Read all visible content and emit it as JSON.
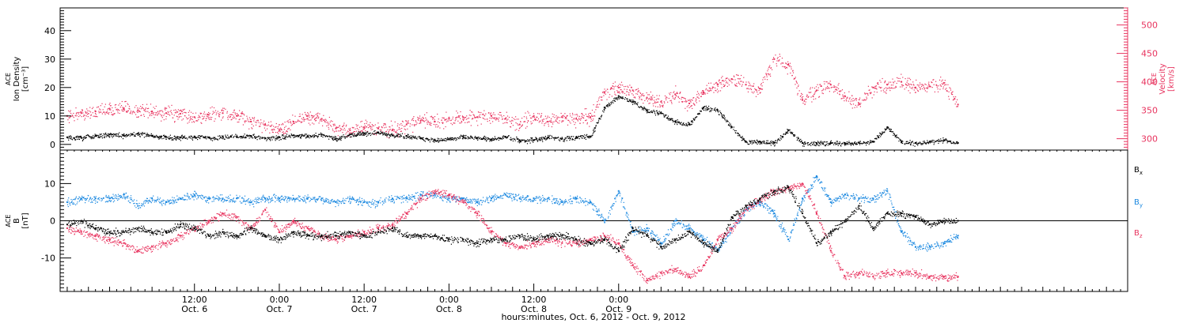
{
  "chart_data": [
    {
      "type": "scatter",
      "panel": "plasma",
      "ylabel": "ACE\nIon Density\n[cm⁻³]",
      "ylabel_right": "ACE\nVelocity\n[km/s]",
      "ylim": [
        -2,
        48
      ],
      "yticks": [
        0,
        10,
        20,
        30,
        40
      ],
      "ylim_right": [
        280,
        530
      ],
      "yticks_right": [
        300,
        350,
        400,
        450,
        500
      ],
      "x_unit": "hours since 2012-10-06 00:00",
      "series": [
        {
          "name": "Ion Density",
          "axis": "left",
          "color": "#000000",
          "x": [
            -6,
            -4,
            -2,
            0,
            2,
            4,
            6,
            8,
            10,
            12,
            14,
            16,
            18,
            20,
            22,
            24,
            26,
            28,
            30,
            32,
            34,
            36,
            38,
            40,
            42,
            44,
            46,
            48,
            50,
            52,
            54,
            56,
            58,
            60,
            62,
            64,
            66,
            68,
            70,
            72,
            74,
            76,
            78,
            80,
            82,
            84,
            86,
            88,
            90,
            92,
            94,
            96,
            98,
            100,
            102,
            104,
            106,
            108,
            110,
            112,
            114,
            116,
            118,
            120
          ],
          "values": [
            2.5,
            2.3,
            3.0,
            3.5,
            3.2,
            3.8,
            3.0,
            2.6,
            2.5,
            2.8,
            2.4,
            2.6,
            2.7,
            3.0,
            2.2,
            2.6,
            3.2,
            2.8,
            3.5,
            2.0,
            3.5,
            3.8,
            4.2,
            3.2,
            3.0,
            2.2,
            1.5,
            2.0,
            2.8,
            2.3,
            1.8,
            2.7,
            1.5,
            1.5,
            2.5,
            2.0,
            2.5,
            2.8,
            13.0,
            17.0,
            15.0,
            12.0,
            11.0,
            8.0,
            7.0,
            13.0,
            12.0,
            6.0,
            1.0,
            1.0,
            0.5,
            5.0,
            0.5,
            0.5,
            0.5,
            0.5,
            0.5,
            1.0,
            6.0,
            1.0,
            0.5,
            1.0,
            1.5,
            0.5
          ]
        },
        {
          "name": "Velocity",
          "axis": "right",
          "color": "#e8345f",
          "x": [
            -6,
            -4,
            -2,
            0,
            2,
            4,
            6,
            8,
            10,
            12,
            14,
            16,
            18,
            20,
            22,
            24,
            26,
            28,
            30,
            32,
            34,
            36,
            38,
            40,
            42,
            44,
            46,
            48,
            50,
            52,
            54,
            56,
            58,
            60,
            62,
            64,
            66,
            68,
            70,
            72,
            74,
            76,
            78,
            80,
            82,
            84,
            86,
            88,
            90,
            92,
            94,
            96,
            98,
            100,
            102,
            104,
            106,
            108,
            110,
            112,
            114,
            116,
            118,
            120
          ],
          "values": [
            340,
            345,
            348,
            353,
            352,
            350,
            348,
            345,
            344,
            338,
            342,
            345,
            340,
            330,
            325,
            315,
            330,
            340,
            335,
            318,
            315,
            320,
            318,
            315,
            325,
            332,
            330,
            335,
            338,
            338,
            340,
            335,
            325,
            340,
            330,
            338,
            335,
            338,
            382,
            390,
            385,
            372,
            365,
            378,
            362,
            382,
            395,
            405,
            395,
            388,
            440,
            430,
            368,
            385,
            395,
            375,
            362,
            390,
            395,
            400,
            390,
            392,
            398,
            360
          ]
        }
      ]
    },
    {
      "type": "scatter",
      "panel": "magnetic-field",
      "ylabel": "ACE\nB\n[nT]",
      "ylim": [
        -19,
        19
      ],
      "yticks": [
        -10,
        0,
        10
      ],
      "zero_line": true,
      "x_unit": "hours since 2012-10-06 00:00",
      "series": [
        {
          "name": "B_x",
          "color": "#000000",
          "x": [
            -6,
            -4,
            -2,
            0,
            2,
            4,
            6,
            8,
            10,
            12,
            14,
            16,
            18,
            20,
            22,
            24,
            26,
            28,
            30,
            32,
            34,
            36,
            38,
            40,
            42,
            44,
            46,
            48,
            50,
            52,
            54,
            56,
            58,
            60,
            62,
            64,
            66,
            68,
            70,
            72,
            74,
            76,
            78,
            80,
            82,
            84,
            86,
            88,
            90,
            92,
            94,
            96,
            98,
            100,
            102,
            104,
            106,
            108,
            110,
            112,
            114,
            116,
            118,
            120
          ],
          "values": [
            -1,
            0,
            -2,
            -3,
            -3,
            -2,
            -3,
            -3,
            -1,
            -2,
            -4,
            -3,
            -4,
            -2,
            -4,
            -5,
            -3,
            -4,
            -4,
            -4,
            -3,
            -4,
            -3,
            -2,
            -4,
            -4,
            -4,
            -5,
            -5,
            -6,
            -5,
            -5,
            -4,
            -5,
            -4,
            -4,
            -5,
            -6,
            -5,
            -8,
            -2,
            -4,
            -7,
            -5,
            -3,
            -6,
            -8,
            1,
            4,
            6,
            8,
            9,
            2,
            -6,
            -3,
            0,
            4,
            -2,
            2,
            2,
            1,
            -1,
            0,
            0
          ]
        },
        {
          "name": "B_y",
          "color": "#1a88e0",
          "x": [
            -6,
            -4,
            -2,
            0,
            2,
            4,
            6,
            8,
            10,
            12,
            14,
            16,
            18,
            20,
            22,
            24,
            26,
            28,
            30,
            32,
            34,
            36,
            38,
            40,
            42,
            44,
            46,
            48,
            50,
            52,
            54,
            56,
            58,
            60,
            62,
            64,
            66,
            68,
            70,
            72,
            74,
            76,
            78,
            80,
            82,
            84,
            86,
            88,
            90,
            92,
            94,
            96,
            98,
            100,
            102,
            104,
            106,
            108,
            110,
            112,
            114,
            116,
            118,
            120
          ],
          "values": [
            5,
            6,
            6,
            6,
            7,
            4,
            6,
            5,
            6,
            7,
            6,
            6,
            6,
            5,
            6,
            6,
            6,
            6,
            6,
            5,
            6,
            5,
            5,
            6,
            6,
            7,
            7,
            6,
            6,
            5,
            6,
            7,
            6,
            6,
            6,
            5,
            6,
            5,
            0,
            8,
            -3,
            -2,
            -6,
            0,
            -2,
            -5,
            -8,
            -2,
            3,
            5,
            2,
            -5,
            6,
            12,
            5,
            7,
            6,
            6,
            8,
            -3,
            -7,
            -7,
            -6,
            -4
          ]
        },
        {
          "name": "B_z",
          "color": "#e8345f",
          "x": [
            -6,
            -4,
            -2,
            0,
            2,
            4,
            6,
            8,
            10,
            12,
            14,
            16,
            18,
            20,
            22,
            24,
            26,
            28,
            30,
            32,
            34,
            36,
            38,
            40,
            42,
            44,
            46,
            48,
            50,
            52,
            54,
            56,
            58,
            60,
            62,
            64,
            66,
            68,
            70,
            72,
            74,
            76,
            78,
            80,
            82,
            84,
            86,
            88,
            90,
            92,
            94,
            96,
            98,
            100,
            102,
            104,
            106,
            108,
            110,
            112,
            114,
            116,
            118,
            120
          ],
          "values": [
            -2,
            -3,
            -4,
            -5,
            -6,
            -8,
            -7,
            -6,
            -4,
            -2,
            0,
            2,
            1,
            -2,
            3,
            -3,
            0,
            -2,
            -4,
            -5,
            -4,
            -3,
            -2,
            -1,
            2,
            6,
            8,
            7,
            5,
            2,
            -3,
            -6,
            -7,
            -6,
            -5,
            -6,
            -6,
            -5,
            -4,
            -6,
            -12,
            -16,
            -14,
            -13,
            -15,
            -12,
            -5,
            -2,
            3,
            6,
            8,
            9,
            10,
            2,
            -8,
            -15,
            -14,
            -15,
            -14,
            -14,
            -14,
            -15,
            -15,
            -15
          ]
        }
      ],
      "legend": [
        "B",
        "B",
        "B"
      ],
      "legend_subscripts": [
        "x",
        "y",
        "z"
      ]
    }
  ],
  "xaxis": {
    "range_hours": [
      -7,
      144
    ],
    "major_ticks": [
      {
        "hour": 12,
        "time": "12:00",
        "date": "Oct. 6"
      },
      {
        "hour": 24,
        "time": "0:00",
        "date": "Oct. 7"
      },
      {
        "hour": 36,
        "time": "12:00",
        "date": "Oct. 7"
      },
      {
        "hour": 48,
        "time": "0:00",
        "date": "Oct. 8"
      },
      {
        "hour": 60,
        "time": "12:00",
        "date": "Oct. 8"
      },
      {
        "hour": 72,
        "time": "0:00",
        "date": "Oct. 9"
      }
    ],
    "label": "hours:minutes, Oct.  6, 2012 - Oct.  9, 2012"
  },
  "colors": {
    "density": "#000000",
    "velocity": "#e8345f",
    "bx": "#000000",
    "by": "#1a88e0",
    "bz": "#e8345f",
    "axis": "#000000"
  }
}
